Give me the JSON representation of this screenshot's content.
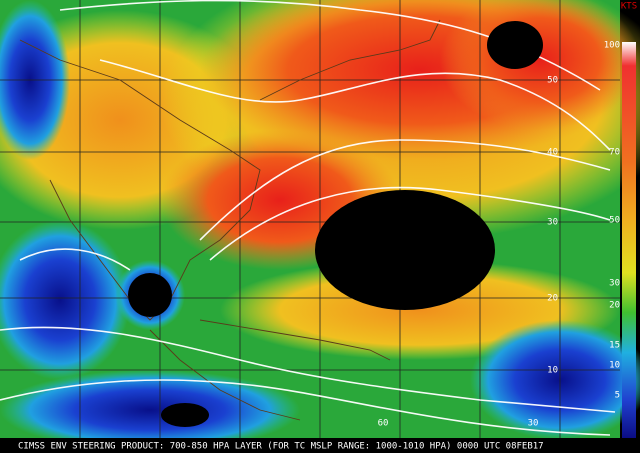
{
  "footer": "CIMSS ENV STEERING PRODUCT: 700-850 HPA LAYER (FOR TC MSLP RANGE: 1000-1010 HPA)  0000 UTC  08FEB17",
  "colorbar": {
    "unit": "KTS",
    "labels": [
      "100",
      "70",
      "50",
      "30",
      "20",
      "15",
      "10",
      "5"
    ]
  },
  "lat_labels": [
    "50",
    "40",
    "30",
    "20",
    "10"
  ],
  "lon_labels": [
    "60",
    "30"
  ]
}
